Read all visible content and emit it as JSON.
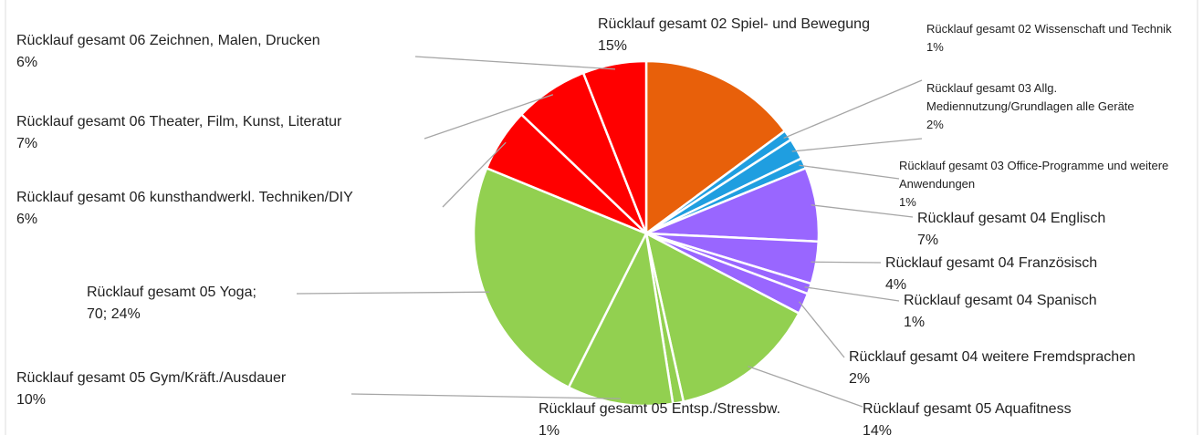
{
  "chart_data": {
    "type": "pie",
    "categories": [
      "Rücklauf gesamt 02 Spiel- und Bewegung",
      "Rücklauf gesamt 02 Wissenschaft und Technik",
      "Rücklauf gesamt 03 Allg. Mediennutzung/Grundlagen alle Geräte",
      "Rücklauf gesamt 03 Office-Programme und weitere Anwendungen",
      "Rücklauf gesamt 04 Englisch",
      "Rücklauf gesamt 04 Französisch",
      "Rücklauf gesamt 04 Spanisch",
      "Rücklauf gesamt 04 weitere Fremdsprachen",
      "Rücklauf gesamt 05 Aquafitness",
      "Rücklauf gesamt 05 Entsp./Stressbw.",
      "Rücklauf gesamt 05 Gym/Kräft./Ausdauer",
      "Rücklauf gesamt 05 Yoga;",
      "Rücklauf gesamt 06 kunsthandwerkl. Techniken/DIY",
      "Rücklauf gesamt 06 Theater, Film, Kunst, Literatur",
      "Rücklauf gesamt 06 Zeichnen, Malen, Drucken"
    ],
    "values": [
      15,
      1,
      2,
      1,
      7,
      4,
      1,
      2,
      14,
      1,
      10,
      24,
      6,
      7,
      6
    ],
    "value_labels": [
      "15%",
      "1%",
      "2%",
      "1%",
      "7%",
      "4%",
      "1%",
      "2%",
      "14%",
      "1%",
      "10%",
      "70; 24%",
      "6%",
      "7%",
      "6%"
    ],
    "colors": [
      "#e8600a",
      "#1f9ee0",
      "#1f9ee0",
      "#1f9ee0",
      "#9966ff",
      "#9966ff",
      "#9966ff",
      "#9966ff",
      "#92d050",
      "#92d050",
      "#92d050",
      "#92d050",
      "#ff0000",
      "#ff0000",
      "#ff0000"
    ]
  }
}
